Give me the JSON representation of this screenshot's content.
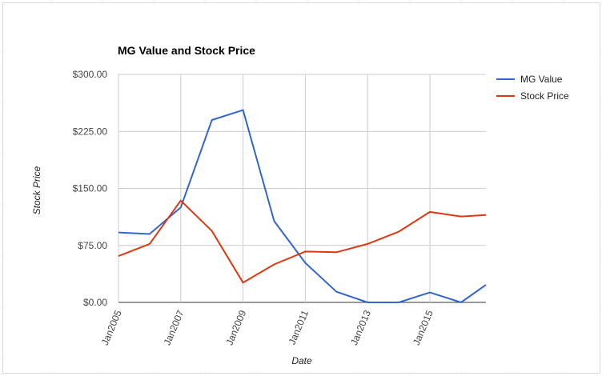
{
  "chart_data": {
    "type": "line",
    "title": "MG Value and Stock Price",
    "xlabel": "Date",
    "ylabel": "Stock Price",
    "x": [
      2005,
      2006,
      2007,
      2008,
      2009,
      2010,
      2011,
      2012,
      2013,
      2014,
      2015,
      2016,
      2016.8
    ],
    "xlim": [
      2005,
      2016.8
    ],
    "ylim": [
      0,
      300
    ],
    "x_ticks": [
      2005,
      2007,
      2009,
      2011,
      2013,
      2015
    ],
    "x_tick_labels": [
      "Jan2005",
      "Jan2007",
      "Jan2009",
      "Jan2011",
      "Jan2013",
      "Jan2015"
    ],
    "y_ticks": [
      0,
      75,
      150,
      225,
      300
    ],
    "y_tick_labels": [
      "$0.00",
      "$75.00",
      "$150.00",
      "$225.00",
      "$300.00"
    ],
    "grid": true,
    "legend_position": "right",
    "series": [
      {
        "name": "MG Value",
        "color": "#3366cc",
        "values": [
          92,
          90,
          125,
          240,
          253,
          107,
          52,
          14,
          0,
          0,
          13,
          0,
          23
        ]
      },
      {
        "name": "Stock Price",
        "color": "#dc3912",
        "values": [
          61,
          77,
          134,
          94,
          26,
          50,
          67,
          66,
          77,
          93,
          119,
          113,
          115
        ]
      }
    ]
  }
}
